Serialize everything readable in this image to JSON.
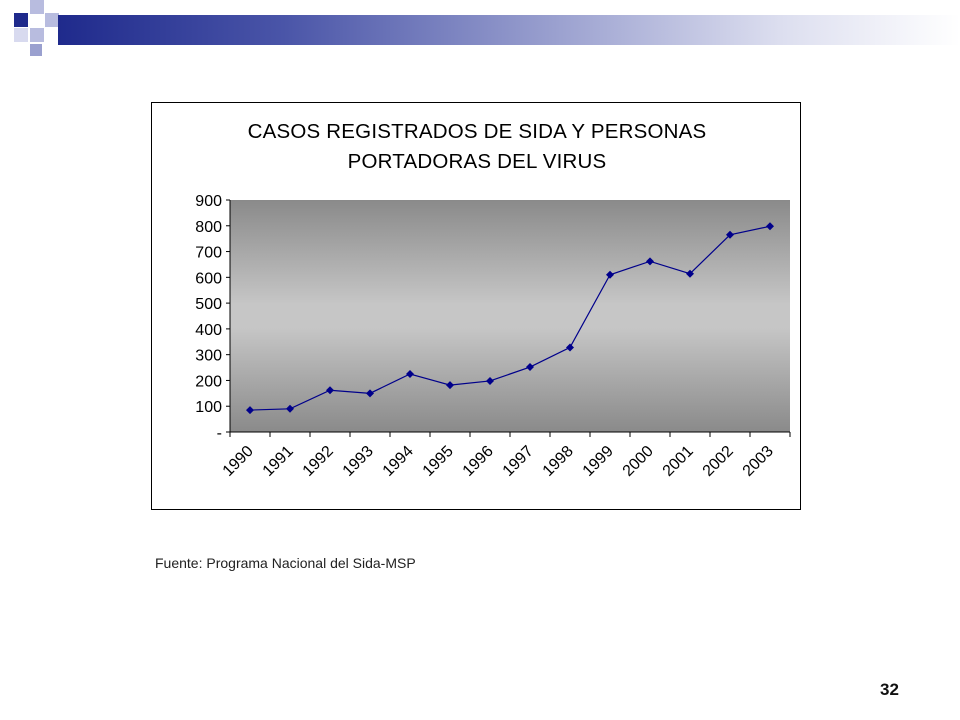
{
  "slide": {
    "source_note": "Fuente: Programa Nacional del Sida-MSP",
    "page_number": "32",
    "colors": {
      "header_dark": "#1f2a8c",
      "header_light": "#9aa0cf",
      "series": "#00008b"
    }
  },
  "chart_data": {
    "type": "line",
    "title_lines": [
      "CASOS REGISTRADOS DE SIDA Y PERSONAS",
      "PORTADORAS DEL VIRUS"
    ],
    "categories": [
      "1990",
      "1991",
      "1992",
      "1993",
      "1994",
      "1995",
      "1996",
      "1997",
      "1998",
      "1999",
      "2000",
      "2001",
      "2002",
      "2003"
    ],
    "series": [
      {
        "values": [
          85,
          90,
          162,
          150,
          225,
          182,
          198,
          252,
          328,
          610,
          662,
          614,
          765,
          798
        ]
      }
    ],
    "yticks": [
      "-",
      "100",
      "200",
      "300",
      "400",
      "500",
      "600",
      "700",
      "800",
      "900"
    ],
    "ylim": [
      0,
      900
    ],
    "xlabel": "",
    "ylabel": "",
    "grid": false,
    "legend": "none",
    "plot_background": "gray gradient"
  }
}
